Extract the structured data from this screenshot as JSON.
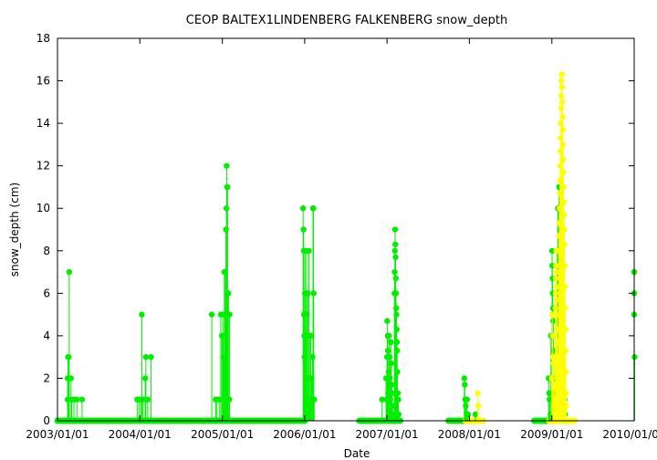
{
  "chart_data": {
    "type": "scatter",
    "title": "CEOP BALTEX1LINDENBERG FALKENBERG  snow_depth",
    "xlabel": "Date",
    "ylabel": "snow_depth (cm)",
    "xlim": [
      "2003-01-01",
      "2010-01-01"
    ],
    "ylim": [
      0,
      18
    ],
    "x_ticks": [
      "2003/01/01",
      "2004/01/01",
      "2005/01/01",
      "2006/01/01",
      "2007/01/01",
      "2008/01/01",
      "2009/01/01",
      "2010/01/01"
    ],
    "y_ticks": [
      0,
      2,
      4,
      6,
      8,
      10,
      12,
      14,
      16,
      18
    ],
    "grid": false,
    "legend": "none",
    "colors": {
      "green": "#00ee00",
      "yellow": "#ffff00"
    },
    "zero_baseline": [
      {
        "from": "2003-01-01",
        "to": "2006-01-01",
        "color": "green"
      },
      {
        "from": "2006-09-01",
        "to": "2007-02-28",
        "color": "green"
      },
      {
        "from": "2007-10-01",
        "to": "2008-03-01",
        "color": "green"
      },
      {
        "from": "2008-10-15",
        "to": "2009-04-10",
        "color": "green"
      },
      {
        "from": "2007-12-15",
        "to": "2008-03-01",
        "color": "yellow"
      },
      {
        "from": "2008-12-20",
        "to": "2009-04-10",
        "color": "yellow"
      }
    ],
    "series": [
      {
        "color": "green",
        "points": [
          [
            "2003-02-15",
            1
          ],
          [
            "2003-02-15",
            2
          ],
          [
            "2003-02-17",
            3
          ],
          [
            "2003-02-20",
            3
          ],
          [
            "2003-02-22",
            7
          ],
          [
            "2003-03-02",
            2
          ],
          [
            "2003-03-05",
            1
          ],
          [
            "2003-03-15",
            1
          ],
          [
            "2003-03-28",
            1
          ],
          [
            "2003-04-20",
            1
          ],
          [
            "2003-12-20",
            1
          ],
          [
            "2003-12-28",
            1
          ],
          [
            "2004-01-05",
            1
          ],
          [
            "2004-01-10",
            5
          ],
          [
            "2004-01-15",
            1
          ],
          [
            "2004-01-25",
            2
          ],
          [
            "2004-01-28",
            3
          ],
          [
            "2004-02-05",
            1
          ],
          [
            "2004-02-20",
            3
          ],
          [
            "2004-11-15",
            5
          ],
          [
            "2004-12-02",
            1
          ],
          [
            "2004-12-06",
            1
          ],
          [
            "2004-12-18",
            1
          ],
          [
            "2004-12-25",
            5
          ],
          [
            "2004-12-30",
            4
          ],
          [
            "2005-01-03",
            5
          ],
          [
            "2005-01-05",
            4
          ],
          [
            "2005-01-08",
            3
          ],
          [
            "2005-01-10",
            7
          ],
          [
            "2005-01-13",
            7
          ],
          [
            "2005-01-15",
            5
          ],
          [
            "2005-01-17",
            9
          ],
          [
            "2005-01-19",
            10
          ],
          [
            "2005-01-20",
            12
          ],
          [
            "2005-01-22",
            11
          ],
          [
            "2005-01-24",
            11
          ],
          [
            "2005-01-26",
            6
          ],
          [
            "2005-01-28",
            6
          ],
          [
            "2005-02-01",
            1
          ],
          [
            "2005-02-02",
            5
          ],
          [
            "2005-12-25",
            10
          ],
          [
            "2005-12-27",
            9
          ],
          [
            "2005-12-28",
            8
          ],
          [
            "2005-12-29",
            5
          ],
          [
            "2005-12-30",
            4
          ],
          [
            "2005-12-31",
            3
          ],
          [
            "2006-01-02",
            6
          ],
          [
            "2006-01-03",
            8
          ],
          [
            "2006-01-05",
            4
          ],
          [
            "2006-01-06",
            2
          ],
          [
            "2006-01-08",
            6
          ],
          [
            "2006-01-09",
            2
          ],
          [
            "2006-01-10",
            8
          ],
          [
            "2006-01-11",
            5
          ],
          [
            "2006-01-13",
            1
          ],
          [
            "2006-01-15",
            6
          ],
          [
            "2006-01-18",
            2
          ],
          [
            "2006-01-20",
            8
          ],
          [
            "2006-01-22",
            1
          ],
          [
            "2006-01-25",
            4
          ],
          [
            "2006-01-28",
            4
          ],
          [
            "2006-02-01",
            2
          ],
          [
            "2006-02-03",
            1
          ],
          [
            "2006-02-05",
            3
          ],
          [
            "2006-02-07",
            10
          ],
          [
            "2006-02-09",
            10
          ],
          [
            "2006-02-10",
            6
          ],
          [
            "2006-02-12",
            1
          ],
          [
            "2006-12-10",
            1
          ],
          [
            "2006-12-28",
            2
          ],
          [
            "2006-12-30",
            1
          ],
          [
            "2007-01-01",
            3
          ],
          [
            "2007-01-02",
            4.7
          ],
          [
            "2007-01-04",
            4
          ],
          [
            "2007-01-05",
            3.3
          ],
          [
            "2007-01-06",
            1.3
          ],
          [
            "2007-01-08",
            2.3
          ],
          [
            "2007-01-10",
            4
          ],
          [
            "2007-01-12",
            3
          ],
          [
            "2007-01-14",
            2
          ],
          [
            "2007-01-16",
            1
          ],
          [
            "2007-01-18",
            3.7
          ],
          [
            "2007-01-20",
            2.7
          ],
          [
            "2007-01-22",
            1.7
          ],
          [
            "2007-01-24",
            1.3
          ],
          [
            "2007-01-26",
            0.7
          ],
          [
            "2007-01-28",
            0.3
          ],
          [
            "2007-02-01",
            0.3
          ],
          [
            "2007-02-03",
            6
          ],
          [
            "2007-02-04",
            7
          ],
          [
            "2007-02-05",
            8
          ],
          [
            "2007-02-06",
            9
          ],
          [
            "2007-02-07",
            8.3
          ],
          [
            "2007-02-08",
            7.7
          ],
          [
            "2007-02-09",
            6.7
          ],
          [
            "2007-02-10",
            6
          ],
          [
            "2007-02-11",
            5.3
          ],
          [
            "2007-02-12",
            5
          ],
          [
            "2007-02-13",
            4.3
          ],
          [
            "2007-02-14",
            3.7
          ],
          [
            "2007-02-15",
            3.3
          ],
          [
            "2007-02-16",
            2.3
          ],
          [
            "2007-02-18",
            1.3
          ],
          [
            "2007-02-20",
            1
          ],
          [
            "2007-02-22",
            0.3
          ],
          [
            "2007-12-10",
            2
          ],
          [
            "2007-12-12",
            1.7
          ],
          [
            "2007-12-14",
            1
          ],
          [
            "2007-12-16",
            0.7
          ],
          [
            "2007-12-18",
            1
          ],
          [
            "2007-12-20",
            0.3
          ],
          [
            "2007-12-22",
            1
          ],
          [
            "2007-12-26",
            0.3
          ],
          [
            "2008-01-28",
            0.3
          ],
          [
            "2008-12-18",
            2
          ],
          [
            "2008-12-20",
            1.3
          ],
          [
            "2008-12-22",
            1
          ],
          [
            "2008-12-26",
            0.3
          ],
          [
            "2008-12-28",
            4
          ],
          [
            "2008-12-30",
            1
          ],
          [
            "2009-01-02",
            8
          ],
          [
            "2009-01-03",
            7.3
          ],
          [
            "2009-01-04",
            6.7
          ],
          [
            "2009-01-05",
            6
          ],
          [
            "2009-01-06",
            5.3
          ],
          [
            "2009-01-07",
            4.7
          ],
          [
            "2009-01-08",
            4
          ],
          [
            "2009-01-09",
            3.3
          ],
          [
            "2009-01-10",
            2.7
          ],
          [
            "2009-01-11",
            2
          ],
          [
            "2009-01-12",
            1.3
          ],
          [
            "2009-01-13",
            0.7
          ],
          [
            "2009-01-16",
            1
          ],
          [
            "2009-01-18",
            3
          ],
          [
            "2009-01-20",
            1.3
          ],
          [
            "2009-01-22",
            3.3
          ],
          [
            "2009-01-24",
            2
          ],
          [
            "2009-01-26",
            8
          ],
          [
            "2009-01-28",
            10
          ],
          [
            "2009-01-30",
            7
          ],
          [
            "2009-02-01",
            6
          ],
          [
            "2009-02-02",
            11
          ],
          [
            "2009-02-04",
            10
          ],
          [
            "2009-02-06",
            9
          ],
          [
            "2009-02-07",
            8.7
          ],
          [
            "2009-02-09",
            7.7
          ],
          [
            "2009-02-10",
            7
          ],
          [
            "2009-02-12",
            6.3
          ],
          [
            "2009-02-14",
            5.3
          ],
          [
            "2009-02-16",
            4.7
          ],
          [
            "2009-02-18",
            3.7
          ],
          [
            "2009-02-20",
            2.7
          ],
          [
            "2009-02-22",
            1.3
          ],
          [
            "2009-02-24",
            0.7
          ],
          [
            "2009-02-26",
            1
          ],
          [
            "2009-03-01",
            0.3
          ],
          [
            "2010-01-01",
            7
          ],
          [
            "2010-01-01",
            6
          ],
          [
            "2010-01-01",
            5
          ],
          [
            "2010-01-03",
            3
          ]
        ]
      },
      {
        "color": "yellow",
        "points": [
          [
            "2008-02-08",
            1.3
          ],
          [
            "2008-02-10",
            0.7
          ],
          [
            "2009-01-01",
            2
          ],
          [
            "2009-01-03",
            5
          ],
          [
            "2009-01-05",
            4
          ],
          [
            "2009-01-07",
            3
          ],
          [
            "2009-01-09",
            2.7
          ],
          [
            "2009-01-11",
            1.7
          ],
          [
            "2009-01-13",
            1
          ],
          [
            "2009-01-15",
            0.7
          ],
          [
            "2009-01-17",
            5.3
          ],
          [
            "2009-01-18",
            6
          ],
          [
            "2009-01-19",
            6.7
          ],
          [
            "2009-01-20",
            7.3
          ],
          [
            "2009-01-21",
            8
          ],
          [
            "2009-01-22",
            7
          ],
          [
            "2009-01-23",
            6.3
          ],
          [
            "2009-01-24",
            5.7
          ],
          [
            "2009-01-25",
            5
          ],
          [
            "2009-01-26",
            4.3
          ],
          [
            "2009-01-27",
            3.7
          ],
          [
            "2009-01-28",
            3
          ],
          [
            "2009-01-29",
            2.3
          ],
          [
            "2009-01-30",
            1.7
          ],
          [
            "2009-01-31",
            1
          ],
          [
            "2009-02-01",
            8
          ],
          [
            "2009-02-02",
            8.7
          ],
          [
            "2009-02-03",
            9.3
          ],
          [
            "2009-02-04",
            10
          ],
          [
            "2009-02-05",
            10.7
          ],
          [
            "2009-02-06",
            11.3
          ],
          [
            "2009-02-07",
            12
          ],
          [
            "2009-02-08",
            12.7
          ],
          [
            "2009-02-09",
            13.3
          ],
          [
            "2009-02-10",
            14
          ],
          [
            "2009-02-11",
            14.7
          ],
          [
            "2009-02-12",
            15.3
          ],
          [
            "2009-02-13",
            16
          ],
          [
            "2009-02-14",
            16.3
          ],
          [
            "2009-02-15",
            15.7
          ],
          [
            "2009-02-16",
            15
          ],
          [
            "2009-02-17",
            14.3
          ],
          [
            "2009-02-18",
            13.7
          ],
          [
            "2009-02-19",
            13
          ],
          [
            "2009-02-20",
            12.3
          ],
          [
            "2009-02-21",
            11.7
          ],
          [
            "2009-02-22",
            11
          ],
          [
            "2009-02-23",
            10.3
          ],
          [
            "2009-02-24",
            9.7
          ],
          [
            "2009-02-25",
            9
          ],
          [
            "2009-02-26",
            8.3
          ],
          [
            "2009-02-27",
            7.3
          ],
          [
            "2009-02-28",
            6.3
          ],
          [
            "2009-03-01",
            5.3
          ],
          [
            "2009-03-02",
            4.3
          ],
          [
            "2009-03-03",
            3.3
          ],
          [
            "2009-03-04",
            2.3
          ],
          [
            "2009-03-05",
            1.3
          ],
          [
            "2009-03-06",
            0.7
          ]
        ]
      }
    ]
  }
}
